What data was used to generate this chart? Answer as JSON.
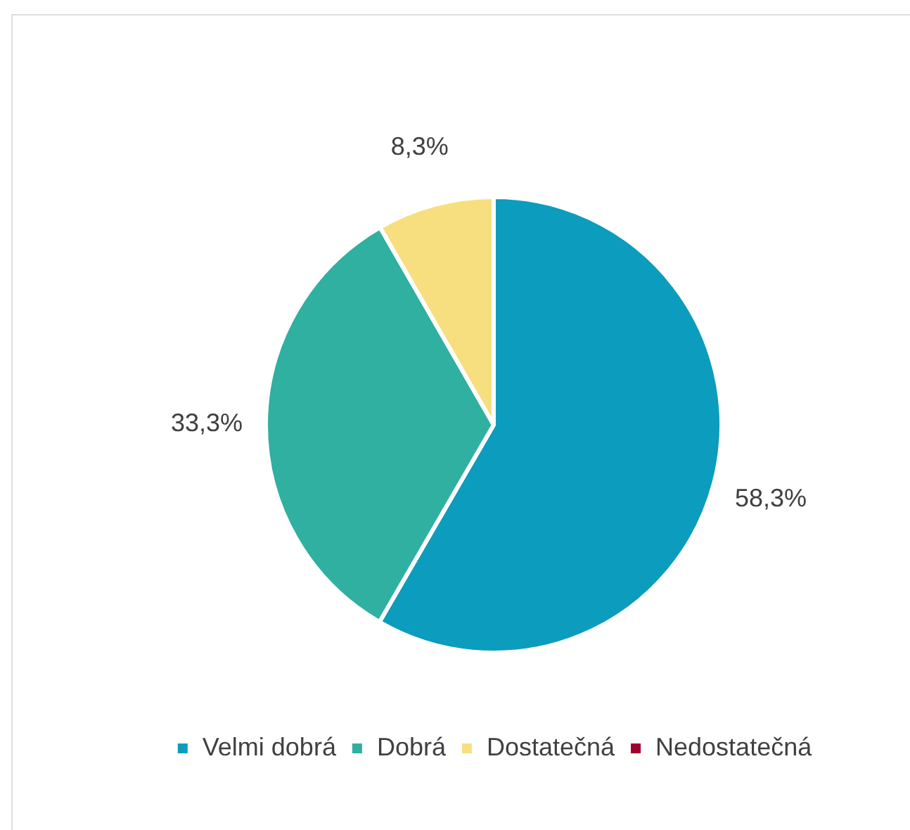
{
  "chart_data": {
    "type": "pie",
    "categories": [
      "Velmi dobrá",
      "Dobrá",
      "Dostatečná",
      "Nedostatečná"
    ],
    "values": [
      58.3,
      33.3,
      8.3,
      0
    ],
    "colors": [
      "#0c9cbd",
      "#2fb0a0",
      "#f7df80",
      "#a0002f"
    ],
    "value_labels": [
      "58,3%",
      "33,3%",
      "8,3%",
      null
    ],
    "legend": "bottom"
  }
}
